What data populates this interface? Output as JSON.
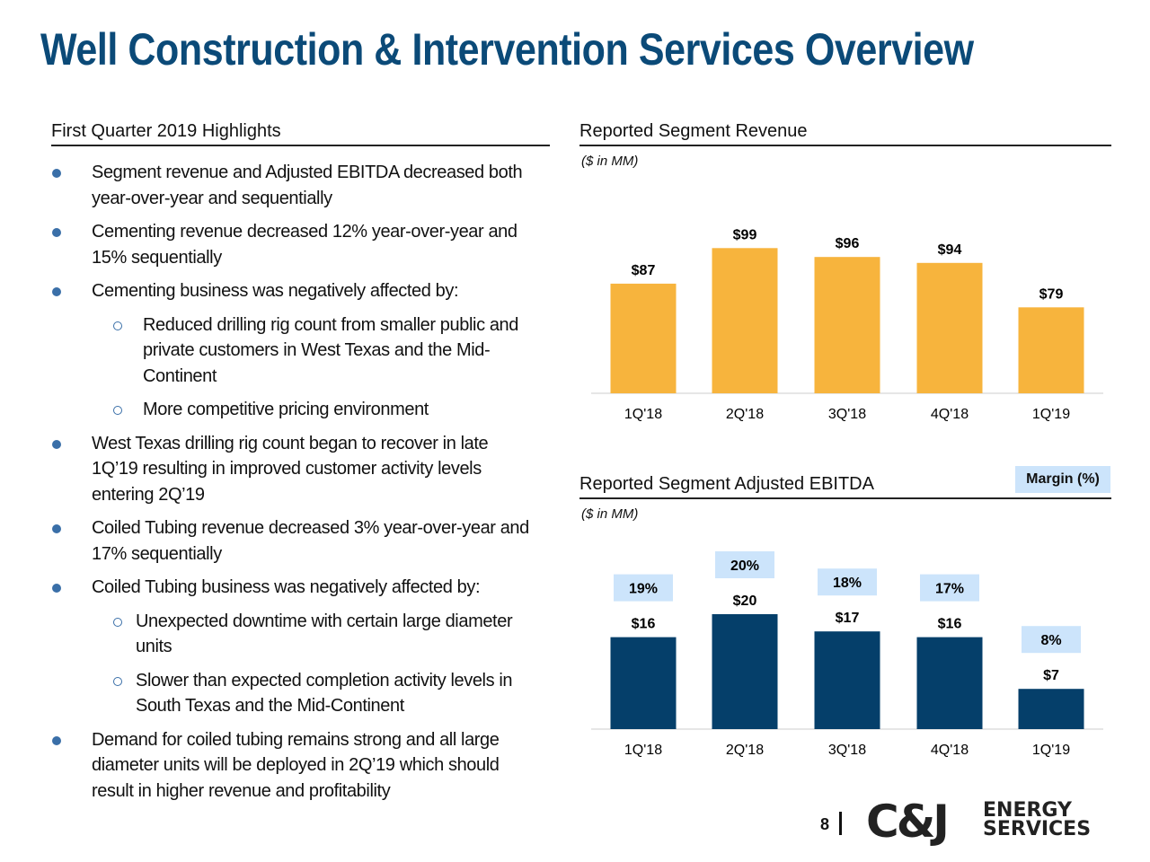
{
  "title": "Well Construction & Intervention Services Overview",
  "highlights": {
    "heading": "First Quarter 2019 Highlights",
    "items": [
      {
        "level": 1,
        "text": "Segment revenue and Adjusted EBITDA decreased both year-over-year and sequentially"
      },
      {
        "level": 1,
        "text": "Cementing revenue decreased 12% year-over-year and 15% sequentially"
      },
      {
        "level": 1,
        "text": "Cementing business was negatively affected by:"
      },
      {
        "level": 2,
        "text": "Reduced drilling rig count from smaller public and private customers in West Texas and the Mid-Continent"
      },
      {
        "level": 2,
        "text": "More competitive pricing environment"
      },
      {
        "level": 1,
        "text": "West Texas drilling rig count began to recover in late 1Q’19 resulting in improved customer activity levels entering 2Q’19"
      },
      {
        "level": 1,
        "text": "Coiled Tubing revenue decreased 3% year-over-year and 17% sequentially"
      },
      {
        "level": 1,
        "text": "Coiled Tubing business was negatively affected by:"
      },
      {
        "level": 3,
        "text": "Unexpected downtime with certain large diameter units"
      },
      {
        "level": 3,
        "text": "Slower than expected completion activity levels in South Texas and the Mid-Continent"
      },
      {
        "level": 1,
        "text": "Demand for coiled tubing remains strong and all large diameter units will be deployed in 2Q’19 which should result in higher revenue and profitability"
      }
    ]
  },
  "chart_data": [
    {
      "type": "bar",
      "title": "Reported Segment Revenue",
      "subtitle": "($ in MM)",
      "categories": [
        "1Q'18",
        "2Q'18",
        "3Q'18",
        "4Q'18",
        "1Q'19"
      ],
      "values": [
        87,
        99,
        96,
        94,
        79
      ],
      "data_labels": [
        "$87",
        "$99",
        "$96",
        "$94",
        "$79"
      ],
      "ylim": [
        50,
        100
      ],
      "grid": false,
      "color": "#f7b43d"
    },
    {
      "type": "bar",
      "title": "Reported Segment Adjusted EBITDA",
      "subtitle": "($ in MM)",
      "categories": [
        "1Q'18",
        "2Q'18",
        "3Q'18",
        "4Q'18",
        "1Q'19"
      ],
      "values": [
        16,
        20,
        17,
        16,
        7
      ],
      "data_labels": [
        "$16",
        "$20",
        "$17",
        "$16",
        "$7"
      ],
      "margin_label": "Margin (%)",
      "margins": [
        "19%",
        "20%",
        "18%",
        "17%",
        "8%"
      ],
      "ylim": [
        0,
        20
      ],
      "grid": false,
      "color": "#053f6a",
      "margin_box_color": "#cce4fb"
    }
  ],
  "footer": {
    "page": "8",
    "logo_text": "C&J ENERGY SERVICES",
    "logo_mark": "C&J",
    "logo_line1": "ENERGY",
    "logo_line2": "SERVICES"
  }
}
